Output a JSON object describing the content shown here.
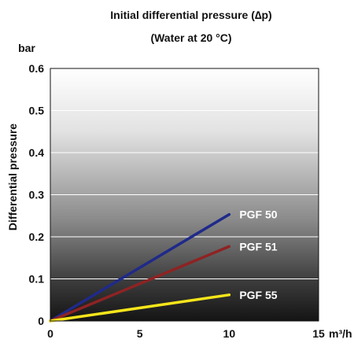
{
  "chart_data": {
    "type": "line",
    "title": "Initial differential pressure (∆p)",
    "subtitle": "(Water at 20 °C)",
    "ylabel": "Differential pressure",
    "yunit": "bar",
    "xunit": "m³/h",
    "xlim": [
      0,
      15
    ],
    "ylim": [
      0,
      0.6
    ],
    "xticks": [
      0,
      5,
      10,
      15
    ],
    "xtick_labels": [
      "0",
      "5",
      "10",
      "15"
    ],
    "yticks": [
      0,
      0.1,
      0.2,
      0.3,
      0.4,
      0.5,
      0.6
    ],
    "ytick_labels": [
      "0",
      "0.1",
      "0.2",
      "0.3",
      "0.4",
      "0.5",
      "0.6"
    ],
    "grid": "horizontal",
    "legend": "inline labels at line ends",
    "series": [
      {
        "name": "PGF 50",
        "color": "#1f2a8a",
        "x": [
          0,
          10
        ],
        "y": [
          0,
          0.253
        ]
      },
      {
        "name": "PGF 51",
        "color": "#8e2323",
        "x": [
          0,
          10
        ],
        "y": [
          0,
          0.177
        ]
      },
      {
        "name": "PGF 55",
        "color": "#f6e51a",
        "x": [
          0,
          10
        ],
        "y": [
          0,
          0.062
        ]
      }
    ]
  }
}
